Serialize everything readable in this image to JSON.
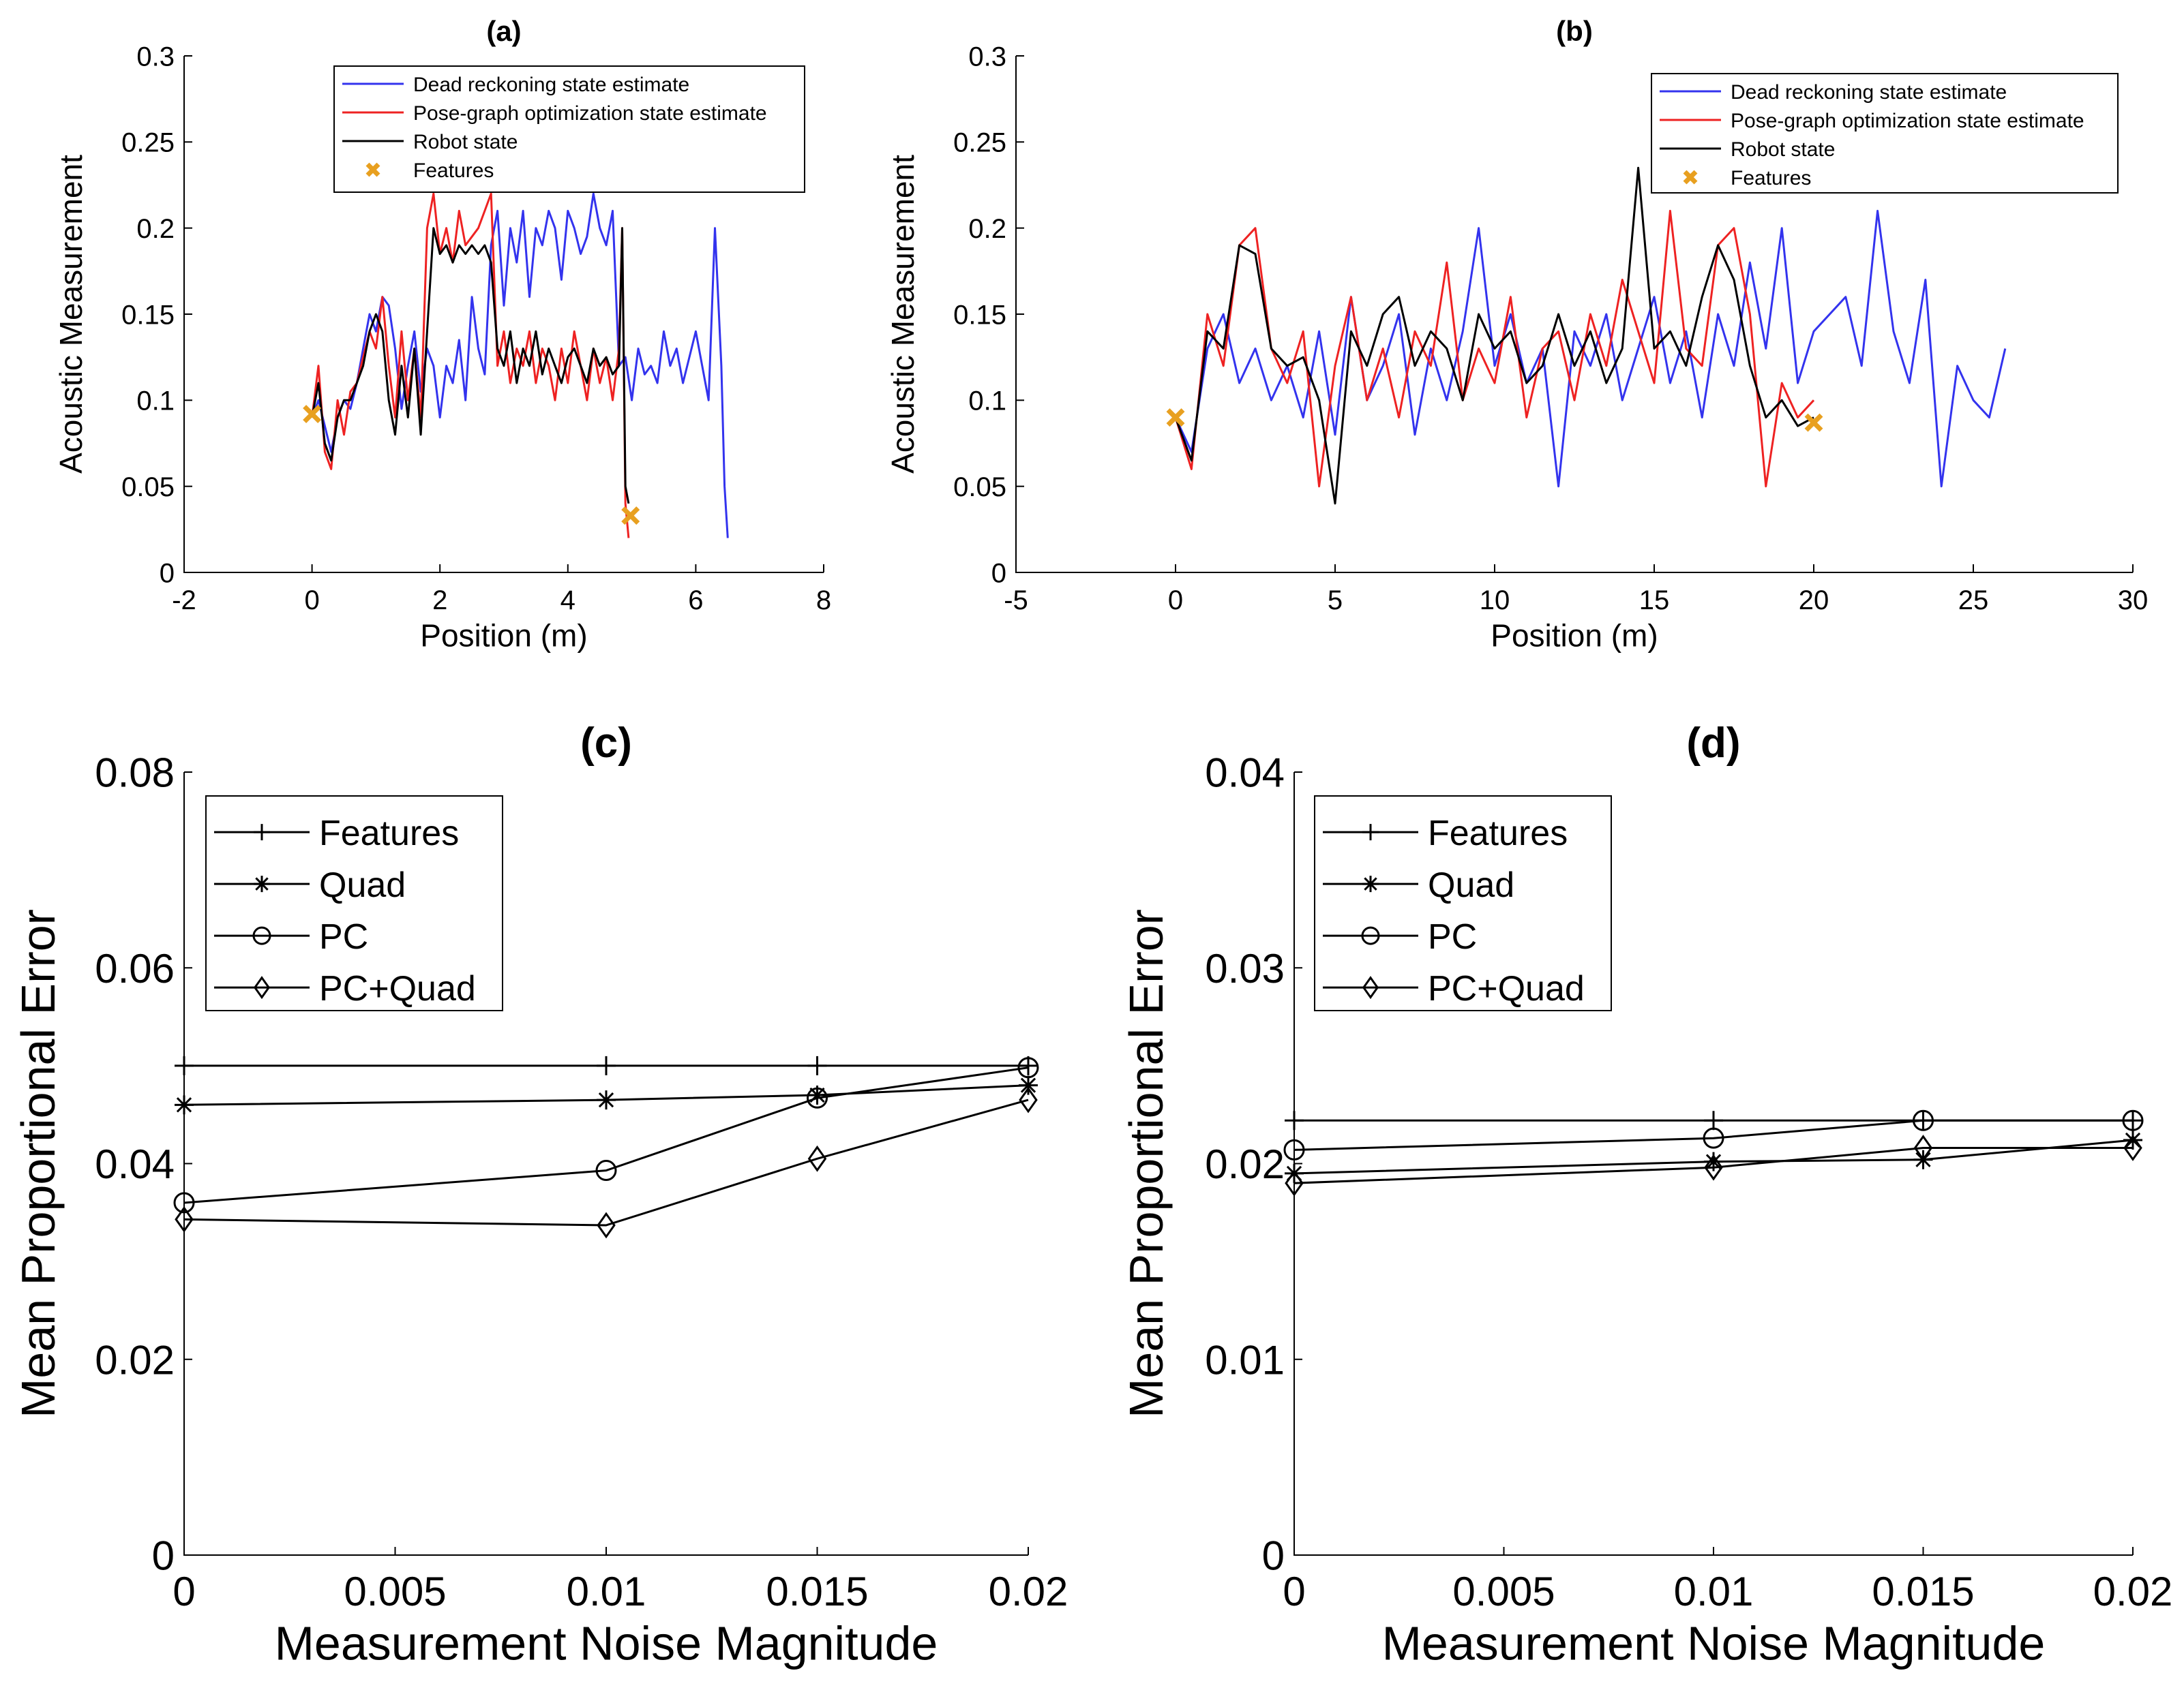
{
  "colors": {
    "dead_reckoning": "#3333ee",
    "pose_graph": "#ee2222",
    "robot": "#000000",
    "features": "#e8a020",
    "axis": "#000000"
  },
  "chart_data": [
    {
      "panel": "a",
      "type": "line",
      "title": "(a)",
      "xlabel": "Position (m)",
      "ylabel": "Acoustic Measurement",
      "xlim": [
        -2,
        8
      ],
      "ylim": [
        0,
        0.3
      ],
      "xticks": [
        -2,
        0,
        2,
        4,
        6,
        8
      ],
      "xtick_labels": [
        "-2",
        "0",
        "2",
        "4",
        "6",
        "8"
      ],
      "yticks": [
        0,
        0.05,
        0.1,
        0.15,
        0.2,
        0.25,
        0.3
      ],
      "ytick_labels": [
        "0",
        "0.05",
        "0.1",
        "0.15",
        "0.2",
        "0.25",
        "0.3"
      ],
      "legend_position": "top-right",
      "series": [
        {
          "name": "Dead reckoning state estimate",
          "style": "line",
          "color_key": "dead_reckoning",
          "x": [
            0,
            0.1,
            0.2,
            0.3,
            0.4,
            0.5,
            0.6,
            0.7,
            0.8,
            0.9,
            1.0,
            1.1,
            1.2,
            1.3,
            1.4,
            1.5,
            1.6,
            1.7,
            1.8,
            1.9,
            2.0,
            2.1,
            2.2,
            2.3,
            2.4,
            2.5,
            2.6,
            2.7,
            2.8,
            2.9,
            3.0,
            3.1,
            3.2,
            3.3,
            3.4,
            3.5,
            3.6,
            3.7,
            3.8,
            3.9,
            4.0,
            4.1,
            4.2,
            4.3,
            4.4,
            4.5,
            4.6,
            4.7,
            4.8,
            4.9,
            5.0,
            5.1,
            5.2,
            5.3,
            5.4,
            5.5,
            5.6,
            5.7,
            5.8,
            5.9,
            6.0,
            6.1,
            6.2,
            6.3,
            6.4,
            6.45,
            6.5
          ],
          "y": [
            0.09,
            0.1,
            0.085,
            0.07,
            0.09,
            0.1,
            0.095,
            0.11,
            0.13,
            0.15,
            0.14,
            0.16,
            0.155,
            0.13,
            0.095,
            0.12,
            0.14,
            0.105,
            0.13,
            0.12,
            0.09,
            0.12,
            0.11,
            0.135,
            0.1,
            0.16,
            0.13,
            0.115,
            0.19,
            0.21,
            0.155,
            0.2,
            0.18,
            0.21,
            0.16,
            0.2,
            0.19,
            0.21,
            0.2,
            0.17,
            0.21,
            0.2,
            0.185,
            0.195,
            0.22,
            0.2,
            0.19,
            0.21,
            0.12,
            0.125,
            0.1,
            0.13,
            0.115,
            0.12,
            0.11,
            0.14,
            0.12,
            0.13,
            0.11,
            0.125,
            0.14,
            0.12,
            0.1,
            0.2,
            0.12,
            0.05,
            0.02
          ]
        },
        {
          "name": "Pose-graph optimization state estimate",
          "style": "line",
          "color_key": "pose_graph",
          "x": [
            0,
            0.1,
            0.2,
            0.3,
            0.4,
            0.5,
            0.6,
            0.7,
            0.8,
            0.9,
            1.0,
            1.1,
            1.2,
            1.3,
            1.4,
            1.5,
            1.6,
            1.7,
            1.8,
            1.9,
            2.0,
            2.1,
            2.2,
            2.3,
            2.4,
            2.5,
            2.6,
            2.7,
            2.8,
            2.9,
            3.0,
            3.1,
            3.2,
            3.3,
            3.4,
            3.5,
            3.6,
            3.7,
            3.8,
            3.9,
            4.0,
            4.1,
            4.2,
            4.3,
            4.4,
            4.5,
            4.6,
            4.7,
            4.8,
            4.85,
            4.9,
            4.95
          ],
          "y": [
            0.09,
            0.12,
            0.07,
            0.06,
            0.1,
            0.08,
            0.105,
            0.11,
            0.125,
            0.14,
            0.13,
            0.16,
            0.12,
            0.09,
            0.14,
            0.1,
            0.13,
            0.09,
            0.2,
            0.22,
            0.185,
            0.2,
            0.18,
            0.21,
            0.19,
            0.195,
            0.2,
            0.21,
            0.22,
            0.12,
            0.14,
            0.11,
            0.13,
            0.12,
            0.14,
            0.11,
            0.13,
            0.12,
            0.1,
            0.13,
            0.11,
            0.14,
            0.12,
            0.1,
            0.13,
            0.11,
            0.125,
            0.1,
            0.13,
            0.2,
            0.04,
            0.02
          ]
        },
        {
          "name": "Robot state",
          "style": "line",
          "color_key": "robot",
          "x": [
            0,
            0.1,
            0.2,
            0.3,
            0.4,
            0.5,
            0.6,
            0.7,
            0.8,
            0.9,
            1.0,
            1.1,
            1.2,
            1.3,
            1.4,
            1.5,
            1.6,
            1.7,
            1.8,
            1.9,
            2.0,
            2.1,
            2.2,
            2.3,
            2.4,
            2.5,
            2.6,
            2.7,
            2.8,
            2.9,
            3.0,
            3.1,
            3.2,
            3.3,
            3.4,
            3.5,
            3.6,
            3.7,
            3.8,
            3.9,
            4.0,
            4.1,
            4.2,
            4.3,
            4.4,
            4.5,
            4.6,
            4.7,
            4.8,
            4.85,
            4.9,
            4.95
          ],
          "y": [
            0.09,
            0.11,
            0.075,
            0.065,
            0.09,
            0.1,
            0.1,
            0.11,
            0.12,
            0.14,
            0.15,
            0.14,
            0.1,
            0.08,
            0.12,
            0.09,
            0.13,
            0.08,
            0.14,
            0.2,
            0.185,
            0.19,
            0.18,
            0.19,
            0.185,
            0.19,
            0.185,
            0.19,
            0.18,
            0.13,
            0.12,
            0.14,
            0.11,
            0.13,
            0.12,
            0.14,
            0.115,
            0.13,
            0.12,
            0.11,
            0.125,
            0.13,
            0.12,
            0.11,
            0.13,
            0.12,
            0.125,
            0.115,
            0.12,
            0.2,
            0.05,
            0.04
          ]
        },
        {
          "name": "Features",
          "style": "marker",
          "color_key": "features",
          "x": [
            0,
            4.98
          ],
          "y": [
            0.092,
            0.033
          ]
        }
      ]
    },
    {
      "panel": "b",
      "type": "line",
      "title": "(b)",
      "xlabel": "Position (m)",
      "ylabel": "Acoustic Measurement",
      "xlim": [
        -5,
        30
      ],
      "ylim": [
        0,
        0.3
      ],
      "xticks": [
        -5,
        0,
        5,
        10,
        15,
        20,
        25,
        30
      ],
      "xtick_labels": [
        "-5",
        "0",
        "5",
        "10",
        "15",
        "20",
        "25",
        "30"
      ],
      "yticks": [
        0,
        0.05,
        0.1,
        0.15,
        0.2,
        0.25,
        0.3
      ],
      "ytick_labels": [
        "0",
        "0.05",
        "0.1",
        "0.15",
        "0.2",
        "0.25",
        "0.3"
      ],
      "legend_position": "top-right",
      "series": [
        {
          "name": "Dead reckoning state estimate",
          "style": "line",
          "color_key": "dead_reckoning",
          "x": [
            0,
            0.5,
            1,
            1.5,
            2,
            2.5,
            3,
            3.5,
            4,
            4.5,
            5,
            5.5,
            6,
            6.5,
            7,
            7.5,
            8,
            8.5,
            9,
            9.5,
            10,
            10.5,
            11,
            11.5,
            12,
            12.5,
            13,
            13.5,
            14,
            14.5,
            15,
            15.5,
            16,
            16.5,
            17,
            17.5,
            18,
            18.5,
            19,
            19.5,
            20,
            20.5,
            21,
            21.5,
            22,
            22.5,
            23,
            23.5,
            24,
            24.5,
            25,
            25.5,
            26
          ],
          "y": [
            0.09,
            0.07,
            0.13,
            0.15,
            0.11,
            0.13,
            0.1,
            0.12,
            0.09,
            0.14,
            0.08,
            0.16,
            0.1,
            0.12,
            0.15,
            0.08,
            0.13,
            0.1,
            0.14,
            0.2,
            0.12,
            0.15,
            0.11,
            0.13,
            0.05,
            0.14,
            0.12,
            0.15,
            0.1,
            0.13,
            0.16,
            0.11,
            0.14,
            0.09,
            0.15,
            0.12,
            0.18,
            0.13,
            0.2,
            0.11,
            0.14,
            0.15,
            0.16,
            0.12,
            0.21,
            0.14,
            0.11,
            0.17,
            0.05,
            0.12,
            0.1,
            0.09,
            0.13
          ]
        },
        {
          "name": "Pose-graph optimization state estimate",
          "style": "line",
          "color_key": "pose_graph",
          "x": [
            0,
            0.5,
            1,
            1.5,
            2,
            2.5,
            3,
            3.5,
            4,
            4.5,
            5,
            5.5,
            6,
            6.5,
            7,
            7.5,
            8,
            8.5,
            9,
            9.5,
            10,
            10.5,
            11,
            11.5,
            12,
            12.5,
            13,
            13.5,
            14,
            14.5,
            15,
            15.5,
            16,
            16.5,
            17,
            17.5,
            18,
            18.5,
            19,
            19.5,
            20
          ],
          "y": [
            0.09,
            0.06,
            0.15,
            0.12,
            0.19,
            0.2,
            0.13,
            0.11,
            0.14,
            0.05,
            0.12,
            0.16,
            0.1,
            0.13,
            0.09,
            0.14,
            0.12,
            0.18,
            0.1,
            0.13,
            0.11,
            0.16,
            0.09,
            0.13,
            0.14,
            0.1,
            0.15,
            0.12,
            0.17,
            0.14,
            0.11,
            0.21,
            0.13,
            0.12,
            0.19,
            0.2,
            0.15,
            0.05,
            0.11,
            0.09,
            0.1
          ]
        },
        {
          "name": "Robot state",
          "style": "line",
          "color_key": "robot",
          "x": [
            0,
            0.5,
            1,
            1.5,
            2,
            2.5,
            3,
            3.5,
            4,
            4.5,
            5,
            5.5,
            6,
            6.5,
            7,
            7.5,
            8,
            8.5,
            9,
            9.5,
            10,
            10.5,
            11,
            11.5,
            12,
            12.5,
            13,
            13.5,
            14,
            14.5,
            15,
            15.5,
            16,
            16.5,
            17,
            17.5,
            18,
            18.5,
            19,
            19.5,
            20
          ],
          "y": [
            0.09,
            0.065,
            0.14,
            0.13,
            0.19,
            0.185,
            0.13,
            0.12,
            0.125,
            0.1,
            0.04,
            0.14,
            0.12,
            0.15,
            0.16,
            0.12,
            0.14,
            0.13,
            0.1,
            0.15,
            0.13,
            0.14,
            0.11,
            0.12,
            0.15,
            0.12,
            0.14,
            0.11,
            0.13,
            0.235,
            0.13,
            0.14,
            0.12,
            0.16,
            0.19,
            0.17,
            0.12,
            0.09,
            0.1,
            0.085,
            0.09
          ]
        },
        {
          "name": "Features",
          "style": "marker",
          "color_key": "features",
          "x": [
            0,
            20
          ],
          "y": [
            0.09,
            0.087
          ]
        }
      ]
    },
    {
      "panel": "c",
      "type": "line",
      "title": "(c)",
      "xlabel": "Measurement Noise Magnitude",
      "ylabel": "Mean Proportional Error",
      "xlim": [
        0,
        0.02
      ],
      "ylim": [
        0,
        0.08
      ],
      "xticks": [
        0,
        0.005,
        0.01,
        0.015,
        0.02
      ],
      "xtick_labels": [
        "0",
        "0.005",
        "0.01",
        "0.015",
        "0.02"
      ],
      "yticks": [
        0,
        0.02,
        0.04,
        0.06,
        0.08
      ],
      "ytick_labels": [
        "0",
        "0.02",
        "0.04",
        "0.06",
        "0.08"
      ],
      "legend_position": "top-left",
      "series": [
        {
          "name": "Features",
          "marker": "plus",
          "x": [
            0,
            0.01,
            0.015,
            0.02
          ],
          "y": [
            0.05,
            0.05,
            0.05,
            0.05
          ]
        },
        {
          "name": "Quad",
          "marker": "star",
          "x": [
            0,
            0.01,
            0.015,
            0.02
          ],
          "y": [
            0.046,
            0.0465,
            0.047,
            0.048
          ]
        },
        {
          "name": "PC",
          "marker": "circle",
          "x": [
            0,
            0.01,
            0.015,
            0.02
          ],
          "y": [
            0.036,
            0.0393,
            0.0467,
            0.0498
          ]
        },
        {
          "name": "PC+Quad",
          "marker": "diamond",
          "x": [
            0,
            0.01,
            0.015,
            0.02
          ],
          "y": [
            0.0343,
            0.0337,
            0.0405,
            0.0465
          ]
        }
      ]
    },
    {
      "panel": "d",
      "type": "line",
      "title": "(d)",
      "xlabel": "Measurement Noise Magnitude",
      "ylabel": "Mean Proportional Error",
      "xlim": [
        0,
        0.02
      ],
      "ylim": [
        0,
        0.04
      ],
      "xticks": [
        0,
        0.005,
        0.01,
        0.015,
        0.02
      ],
      "xtick_labels": [
        "0",
        "0.005",
        "0.01",
        "0.015",
        "0.02"
      ],
      "yticks": [
        0,
        0.01,
        0.02,
        0.03,
        0.04
      ],
      "ytick_labels": [
        "0",
        "0.01",
        "0.02",
        "0.03",
        "0.04"
      ],
      "legend_position": "top-left",
      "series": [
        {
          "name": "Features",
          "marker": "plus",
          "x": [
            0,
            0.01,
            0.015,
            0.02
          ],
          "y": [
            0.0222,
            0.0222,
            0.0222,
            0.0222
          ]
        },
        {
          "name": "Quad",
          "marker": "star",
          "x": [
            0,
            0.01,
            0.015,
            0.02
          ],
          "y": [
            0.0195,
            0.0201,
            0.0202,
            0.0212
          ]
        },
        {
          "name": "PC",
          "marker": "circle",
          "x": [
            0,
            0.01,
            0.015,
            0.02
          ],
          "y": [
            0.0207,
            0.0213,
            0.0222,
            0.0222
          ]
        },
        {
          "name": "PC+Quad",
          "marker": "diamond",
          "x": [
            0,
            0.01,
            0.015,
            0.02
          ],
          "y": [
            0.019,
            0.0198,
            0.0208,
            0.0208
          ]
        }
      ]
    }
  ]
}
